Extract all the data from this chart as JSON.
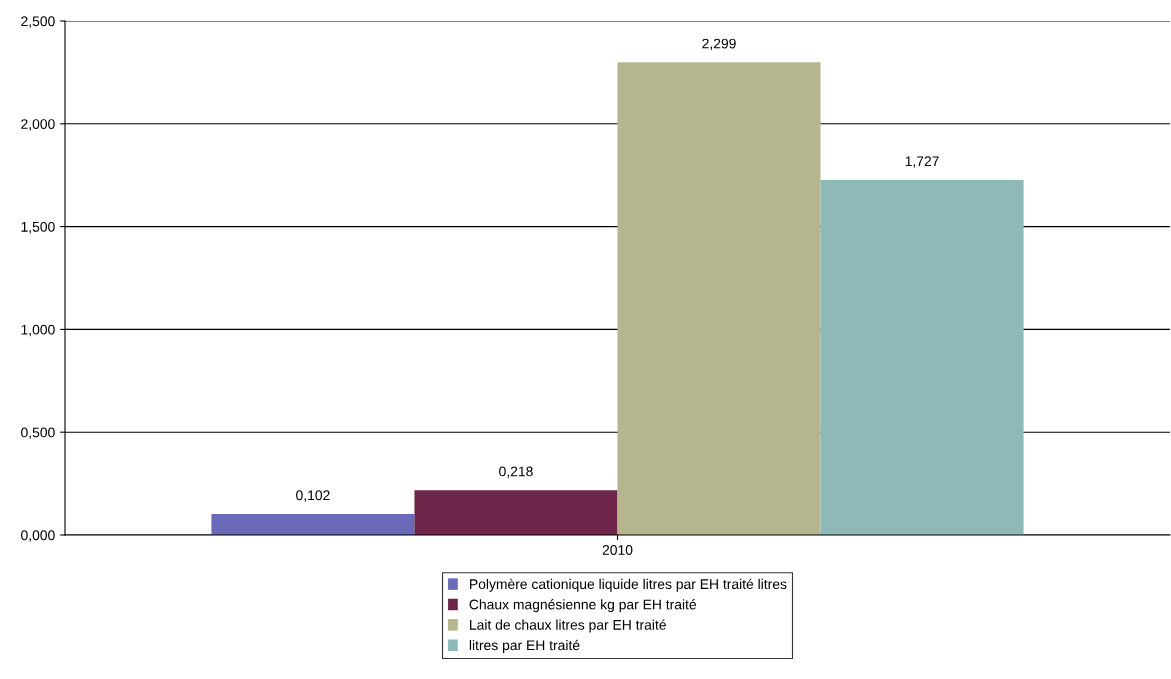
{
  "chart_data": {
    "type": "bar",
    "categories": [
      "2010"
    ],
    "series": [
      {
        "name": "Polymère cationique liquide litres par EH traité litres",
        "color": "#6a6ab8",
        "values": [
          0.102
        ],
        "value_labels": [
          "0,102"
        ]
      },
      {
        "name": "Chaux magnésienne kg par EH traité",
        "color": "#6e2549",
        "values": [
          0.218
        ],
        "value_labels": [
          "0,218"
        ]
      },
      {
        "name": "Lait de chaux litres par EH traité",
        "color": "#b5b58e",
        "values": [
          2.299
        ],
        "value_labels": [
          "2,299"
        ]
      },
      {
        "name": "litres par EH traité",
        "color": "#8fb9b9",
        "values": [
          1.727
        ],
        "value_labels": [
          "1,727"
        ]
      }
    ],
    "ylim": [
      0,
      2.5
    ],
    "yticks": [
      {
        "value": 0,
        "label": "0,000"
      },
      {
        "value": 0.5,
        "label": "0,500"
      },
      {
        "value": 1,
        "label": "1,000"
      },
      {
        "value": 1.5,
        "label": "1,500"
      },
      {
        "value": 2,
        "label": "2,000"
      },
      {
        "value": 2.5,
        "label": "2,500"
      }
    ],
    "grid": "y",
    "legend": "bottom"
  }
}
